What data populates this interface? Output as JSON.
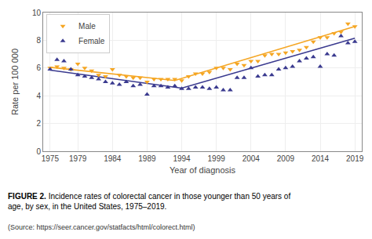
{
  "chart_data": {
    "type": "scatter",
    "xlabel": "Year of diagnosis",
    "ylabel": "Rate per 100 000",
    "series": [
      {
        "name": "Male",
        "color": "#F5A623",
        "marker": "triangle-down",
        "line_style": "solid",
        "x": [
          1975,
          1976,
          1977,
          1978,
          1979,
          1980,
          1981,
          1982,
          1983,
          1984,
          1985,
          1986,
          1987,
          1988,
          1989,
          1990,
          1991,
          1992,
          1993,
          1994,
          1995,
          1996,
          1997,
          1998,
          1999,
          2000,
          2001,
          2002,
          2003,
          2004,
          2005,
          2006,
          2007,
          2008,
          2009,
          2010,
          2011,
          2012,
          2013,
          2014,
          2015,
          2016,
          2017,
          2018,
          2019
        ],
        "values": [
          6.0,
          6.1,
          6.0,
          5.9,
          6.3,
          6.0,
          5.8,
          5.5,
          5.4,
          5.9,
          5.5,
          5.4,
          5.3,
          5.3,
          5.0,
          5.2,
          5.2,
          5.2,
          5.2,
          5.1,
          5.4,
          5.6,
          5.6,
          5.7,
          6.0,
          6.0,
          5.9,
          6.3,
          6.2,
          6.5,
          6.5,
          6.9,
          7.0,
          7.0,
          7.1,
          7.2,
          7.3,
          7.5,
          7.9,
          8.2,
          8.2,
          8.5,
          8.6,
          9.2,
          9.0
        ],
        "trend_x": [
          1975,
          1993,
          2019
        ],
        "trend_y": [
          6.05,
          5.1,
          9.0
        ]
      },
      {
        "name": "Female",
        "color": "#3A3A8F",
        "marker": "triangle-up",
        "line_style": "solid",
        "x": [
          1975,
          1976,
          1977,
          1978,
          1979,
          1980,
          1981,
          1982,
          1983,
          1984,
          1985,
          1986,
          1987,
          1988,
          1989,
          1990,
          1991,
          1992,
          1993,
          1994,
          1995,
          1996,
          1997,
          1998,
          1999,
          2000,
          2001,
          2002,
          2003,
          2004,
          2005,
          2006,
          2007,
          2008,
          2009,
          2010,
          2011,
          2012,
          2013,
          2014,
          2015,
          2016,
          2017,
          2018,
          2019
        ],
        "values": [
          5.9,
          6.6,
          6.5,
          5.9,
          5.5,
          5.4,
          5.3,
          5.2,
          5.0,
          4.9,
          4.8,
          5.0,
          4.7,
          4.8,
          4.1,
          4.7,
          4.7,
          4.6,
          4.7,
          4.5,
          4.5,
          4.6,
          4.6,
          4.5,
          4.6,
          4.4,
          4.4,
          5.3,
          5.3,
          6.0,
          5.4,
          5.5,
          5.5,
          5.9,
          6.0,
          6.1,
          6.5,
          6.7,
          6.8,
          6.1,
          7.0,
          6.9,
          8.3,
          7.8,
          7.9
        ],
        "trend_x": [
          1975,
          1994,
          2019
        ],
        "trend_y": [
          5.85,
          4.55,
          8.15
        ]
      }
    ],
    "xlim": [
      1974,
      2020
    ],
    "ylim": [
      0,
      10
    ],
    "xticks": [
      1975,
      1979,
      1984,
      1989,
      1994,
      1999,
      2004,
      2009,
      2014,
      2019
    ],
    "yticks": [
      0,
      2,
      4,
      6,
      8,
      10
    ],
    "grid": true,
    "legend": "upper left",
    "annotations": [
      "FIGURE 2.",
      "Incidence rates of colorectal cancer in those younger than 50 years of age, by sex, in the United States, 1975–2019.",
      "(Source: https://seer.cancer.gov/statfacts/html/colorect.html)"
    ]
  }
}
